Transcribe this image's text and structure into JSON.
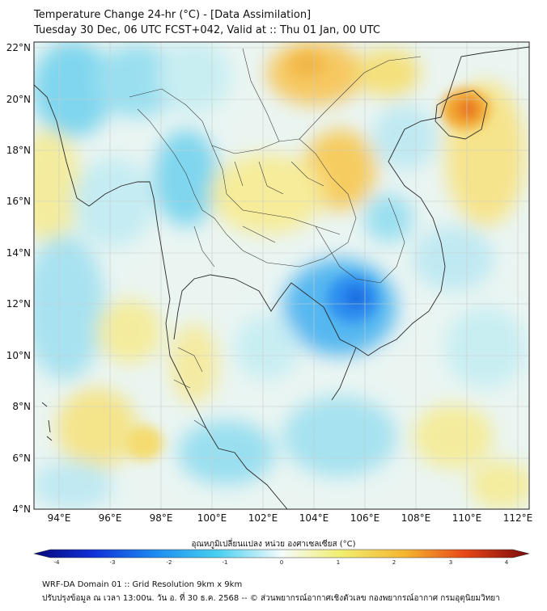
{
  "header": {
    "title": "Temperature Change 24-hr (°C) - [Data Assimilation]",
    "subtitle": "Tuesday 30 Dec, 06 UTC FCST+042, Valid at :: Thu 01 Jan, 00 UTC"
  },
  "map": {
    "lon_range": [
      93,
      112.5
    ],
    "lat_range": [
      4,
      22.2
    ],
    "lat_ticks": [
      "22°N",
      "20°N",
      "18°N",
      "16°N",
      "14°N",
      "12°N",
      "10°N",
      "8°N",
      "6°N",
      "4°N"
    ],
    "lon_ticks": [
      "94°E",
      "96°E",
      "98°E",
      "100°E",
      "102°E",
      "104°E",
      "106°E",
      "108°E",
      "110°E",
      "112°E"
    ],
    "field_colors": {
      "cool": "#2f8ff0",
      "mid": "#eaf6f8",
      "warm": "#f0a830"
    },
    "features": [
      {
        "name": "cold-anomaly-cambodia",
        "lon": 105.8,
        "lat": 12.1,
        "value": -2.5
      },
      {
        "name": "warm-anomaly-hainan",
        "lon": 110.2,
        "lat": 19.6,
        "value": 2.5
      },
      {
        "name": "warm-anomaly-north-vietnam",
        "lon": 104.8,
        "lat": 20.6,
        "value": 1.6
      },
      {
        "name": "warm-anomaly-laos",
        "lon": 104.3,
        "lat": 16.3,
        "value": 1.5
      },
      {
        "name": "warm-anomaly-malay",
        "lon": 97.8,
        "lat": 6.6,
        "value": 1.2
      }
    ]
  },
  "colorbar": {
    "title": "อุณหภูมิเปลี่ยนแปลง หน่วย องศาเซลเซียส (°C)",
    "ticks": [
      "-4",
      "-3",
      "-2",
      "-1",
      "0",
      "1",
      "2",
      "3",
      "4"
    ],
    "range": [
      -4,
      4
    ]
  },
  "footer": {
    "line1": "WRF-DA Domain 01 :: Grid Resolution 9km x 9km",
    "line2": "ปรับปรุงข้อมูล ณ เวลา 13:00น. วัน อ. ที่ 30 ธ.ค. 2568 -- © ส่วนพยากรณ์อากาศเชิงตัวเลข กองพยากรณ์อากาศ กรมอุตุนิยมวิทยา"
  }
}
